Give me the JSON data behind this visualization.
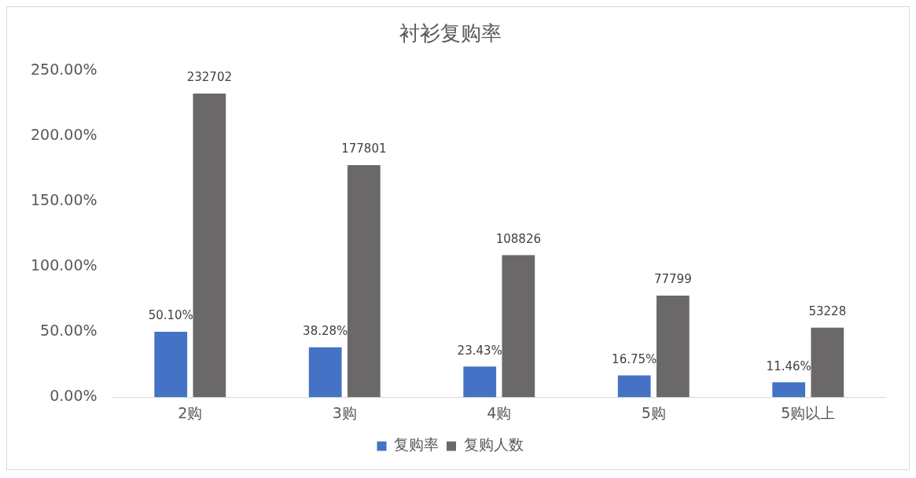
{
  "chart_data": {
    "type": "bar",
    "title": "衬衫复购率",
    "categories": [
      "2购",
      "3购",
      "4购",
      "5购",
      "5购以上"
    ],
    "series": [
      {
        "name": "复购率",
        "color": "#4472c4",
        "values": [
          50.1,
          38.28,
          23.43,
          16.75,
          11.46
        ],
        "value_labels": [
          "50.10%",
          "38.28%",
          "23.43%",
          "16.75%",
          "11.46%"
        ]
      },
      {
        "name": "复购人数",
        "color": "#6b6869",
        "axis": "y2",
        "values": [
          232702,
          177801,
          108826,
          77799,
          53228
        ],
        "value_labels": [
          "232702",
          "177801",
          "108826",
          "77799",
          "53228"
        ]
      }
    ],
    "ylim": [
      0,
      250
    ],
    "yticks": [
      {
        "value": 0,
        "label": "0.00%"
      },
      {
        "value": 50,
        "label": "50.00%"
      },
      {
        "value": 100,
        "label": "100.00%"
      },
      {
        "value": 150,
        "label": "150.00%"
      },
      {
        "value": 200,
        "label": "200.00%"
      },
      {
        "value": 250,
        "label": "250.00%"
      }
    ],
    "grid": false,
    "legend": "bottom"
  }
}
